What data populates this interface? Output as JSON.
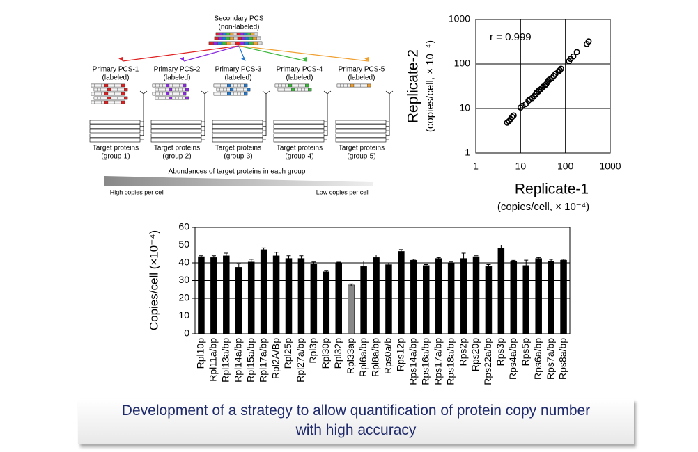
{
  "diagram": {
    "secondary": {
      "title": "Secondary PCS",
      "subtitle": "(non-labeled)"
    },
    "primary": [
      {
        "title": "Primary PCS-1",
        "subtitle": "(labeled)",
        "color": "#e02020"
      },
      {
        "title": "Primary PCS-2",
        "subtitle": "(labeled)",
        "color": "#8a2be2"
      },
      {
        "title": "Primary PCS-3",
        "subtitle": "(labeled)",
        "color": "#1f78d1"
      },
      {
        "title": "Primary PCS-4",
        "subtitle": "(labeled)",
        "color": "#3cb83c"
      },
      {
        "title": "Primary PCS-5",
        "subtitle": "(labeled)",
        "color": "#f0a030"
      }
    ],
    "targets": [
      {
        "title": "Target proteins",
        "subtitle": "(group-1)"
      },
      {
        "title": "Target proteins",
        "subtitle": "(group-2)"
      },
      {
        "title": "Target proteins",
        "subtitle": "(group-3)"
      },
      {
        "title": "Target proteins",
        "subtitle": "(group-4)"
      },
      {
        "title": "Target proteins",
        "subtitle": "(group-5)"
      }
    ],
    "abundance_label": "Abundances of target proteins in each group",
    "high_label": "High copies per cell",
    "low_label": "Low copies per cell"
  },
  "chart_data": [
    {
      "type": "scatter",
      "annotation": "r = 0.999",
      "x_label": "Replicate-1",
      "x_sublabel": "(copies/cell, × 10⁻⁴)",
      "y_label": "Replicate-2",
      "y_sublabel": "(copies/cell, × 10⁻⁴)",
      "log_scale": true,
      "grid": true,
      "color": "#000000",
      "xlim": [
        1,
        1000
      ],
      "ylim": [
        1,
        1000
      ],
      "xticks": [
        1,
        10,
        100,
        1000
      ],
      "yticks": [
        1,
        10,
        100,
        1000
      ],
      "x": [
        5,
        5.5,
        6,
        6.5,
        7,
        10,
        11,
        13,
        15,
        16,
        18,
        20,
        22,
        23,
        25,
        26,
        28,
        30,
        32,
        35,
        37,
        40,
        42,
        45,
        50,
        55,
        60,
        70,
        75,
        80,
        120,
        130,
        150,
        180,
        300,
        330
      ],
      "y": [
        4.8,
        5.2,
        5.8,
        6.5,
        7,
        10.5,
        11.5,
        12.5,
        15,
        16,
        17,
        19,
        21,
        23,
        24,
        26,
        27,
        29,
        31,
        33,
        35,
        39,
        43,
        45,
        48,
        54,
        60,
        68,
        72,
        78,
        115,
        130,
        148,
        185,
        280,
        320
      ]
    },
    {
      "type": "bar",
      "y_label": "Copies/cell (×10⁻⁴)",
      "grid": true,
      "ylim": [
        0,
        60
      ],
      "yticks": [
        0,
        10,
        20,
        30,
        40,
        50,
        60
      ],
      "categories": [
        "Rpl10p",
        "Rpl11a/bp",
        "Rpl13a/bp",
        "Rpl14a/bp",
        "Rpl15a/bp",
        "Rpl17a/bp",
        "Rpl2A/Bp",
        "Rpl25p",
        "Rpl27a/bp",
        "Rpl3p",
        "Rpl30p",
        "Rpl32p",
        "Rpl33ap",
        "Rpl6a/bp",
        "Rpl8a/bp",
        "Rps0a/b",
        "Rps12p",
        "Rps14a/bp",
        "Rps16a/bp",
        "Rps17a/bp",
        "Rps18a/bp",
        "Rps2p",
        "Rps20p",
        "Rps22a/bp",
        "Rps3p",
        "Rps4a/bp",
        "Rps5p",
        "Rps6a/bp",
        "Rps7a/bp",
        "Rps8a/bp"
      ],
      "values": [
        43.5,
        43,
        44,
        37.5,
        40.5,
        47.5,
        44,
        42.5,
        42.5,
        39.5,
        35,
        40,
        27.5,
        38,
        43,
        39,
        46.5,
        41.5,
        38.5,
        42.5,
        40,
        42.5,
        43.5,
        38,
        48.5,
        41,
        38.5,
        42.5,
        41,
        41.5
      ],
      "errors": [
        0.5,
        1,
        1.5,
        2,
        1.5,
        1,
        2,
        1.5,
        1.5,
        1,
        0.8,
        0.4,
        0.6,
        3,
        1.5,
        1,
        1,
        0.5,
        0.5,
        0.5,
        0.5,
        3,
        0.5,
        1,
        1.5,
        0.4,
        3,
        0.5,
        1,
        0.5
      ],
      "colors": [
        "#000000",
        "#000000",
        "#000000",
        "#000000",
        "#000000",
        "#000000",
        "#000000",
        "#000000",
        "#000000",
        "#000000",
        "#000000",
        "#000000",
        "#888888",
        "#000000",
        "#000000",
        "#000000",
        "#000000",
        "#000000",
        "#000000",
        "#000000",
        "#000000",
        "#000000",
        "#000000",
        "#000000",
        "#000000",
        "#000000",
        "#000000",
        "#000000",
        "#000000",
        "#000000"
      ]
    }
  ],
  "caption": [
    "Development of a strategy to allow quantification of protein copy number",
    "with high accuracy"
  ]
}
